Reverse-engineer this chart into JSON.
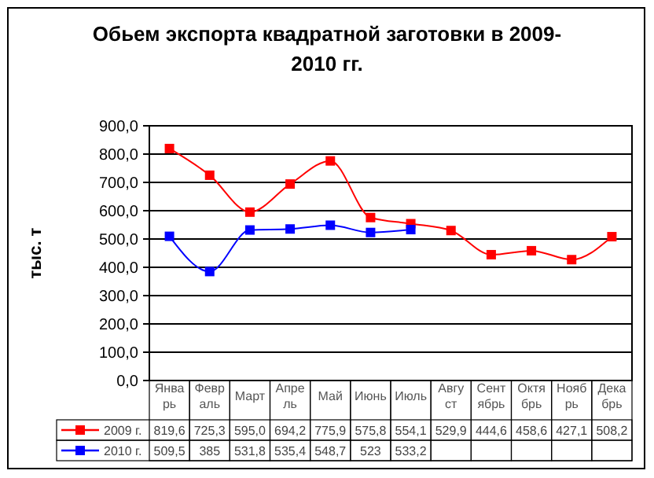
{
  "chart_data": {
    "type": "line",
    "title": "Обьем экспорта квадратной заготовки в 2009-2010 гг.",
    "ylabel": "тыс. т",
    "categories": [
      "Январь",
      "Февраль",
      "Март",
      "Апрель",
      "Май",
      "Июнь",
      "Июль",
      "Август",
      "Сентябрь",
      "Октябрь",
      "Ноябрь",
      "Декабрь"
    ],
    "series": [
      {
        "name": "2009 г.",
        "color": "#ff0000",
        "values": [
          819.6,
          725.3,
          595.0,
          694.2,
          775.9,
          575.8,
          554.1,
          529.9,
          444.6,
          458.6,
          427.1,
          508.2
        ],
        "value_labels": [
          "819,6",
          "725,3",
          "595,0",
          "694,2",
          "775,9",
          "575,8",
          "554,1",
          "529,9",
          "444,6",
          "458,6",
          "427,1",
          "508,2"
        ]
      },
      {
        "name": "2010 г.",
        "color": "#0000ff",
        "values": [
          509.5,
          385,
          531.8,
          535.4,
          548.7,
          523,
          533.2,
          null,
          null,
          null,
          null,
          null
        ],
        "value_labels": [
          "509,5",
          "385",
          "531,8",
          "535,4",
          "548,7",
          "523",
          "533,2",
          null,
          null,
          null,
          null,
          null
        ]
      }
    ],
    "ylim": [
      0,
      900
    ],
    "yticks": [
      {
        "value": 0,
        "label": "0,0"
      },
      {
        "value": 100,
        "label": "100,0"
      },
      {
        "value": 200,
        "label": "200,0"
      },
      {
        "value": 300,
        "label": "300,0"
      },
      {
        "value": 400,
        "label": "400,0"
      },
      {
        "value": 500,
        "label": "500,0"
      },
      {
        "value": 600,
        "label": "600,0"
      },
      {
        "value": 700,
        "label": "700,0"
      },
      {
        "value": 800,
        "label": "800,0"
      },
      {
        "value": 900,
        "label": "900,0"
      }
    ],
    "grid": "y",
    "legend": "bottom",
    "marker": "square",
    "line_style": "solid"
  }
}
